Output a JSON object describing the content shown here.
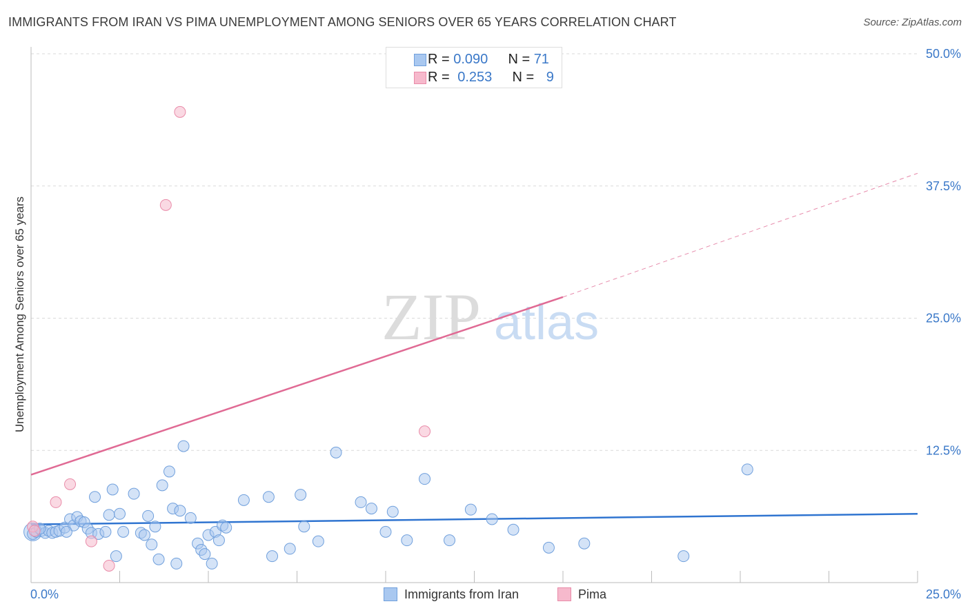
{
  "title": "IMMIGRANTS FROM IRAN VS PIMA UNEMPLOYMENT AMONG SENIORS OVER 65 YEARS CORRELATION CHART",
  "source": "Source: ZipAtlas.com",
  "watermark": {
    "zip": "ZIP",
    "atlas": "atlas"
  },
  "legend_top": {
    "rows": [
      {
        "r_label": "R = ",
        "r_value": "0.090",
        "n_label": "N = ",
        "n_value": "71",
        "color": "#a9c8f0"
      },
      {
        "r_label": "R = ",
        "r_value": "0.253",
        "n_label": "N = ",
        "n_value": "9",
        "color": "#f6b9cc"
      }
    ]
  },
  "legend_bottom": [
    {
      "label": "Immigrants from Iran",
      "color": "#a9c8f0"
    },
    {
      "label": "Pima",
      "color": "#f6b9cc"
    }
  ],
  "colors": {
    "blue_fill": "#a9c8f0",
    "blue_stroke": "#6f9fdc",
    "blue_line": "#2f74d0",
    "pink_fill": "#f6b9cc",
    "pink_stroke": "#e98aa8",
    "pink_line": "#e06a94",
    "grid": "#d9d9d9",
    "tick_text": "#3a78c8"
  },
  "chart_data": {
    "type": "scatter",
    "title": "IMMIGRANTS FROM IRAN VS PIMA UNEMPLOYMENT AMONG SENIORS OVER 65 YEARS CORRELATION CHART",
    "xlabel": "",
    "ylabel": "Unemployment Among Seniors over 65 years",
    "xlim": [
      0,
      25
    ],
    "ylim": [
      0,
      50
    ],
    "x_tick_labels": [
      "0.0%",
      "25.0%"
    ],
    "y_ticks": [
      12.5,
      25.0,
      37.5,
      50.0
    ],
    "y_tick_labels": [
      "12.5%",
      "25.0%",
      "37.5%",
      "50.0%"
    ],
    "grid": true,
    "series": [
      {
        "name": "Immigrants from Iran",
        "r": 0.09,
        "n": 71,
        "points": [
          [
            0.05,
            4.6
          ],
          [
            0.15,
            4.8
          ],
          [
            0.3,
            4.9
          ],
          [
            0.4,
            4.7
          ],
          [
            0.5,
            4.9
          ],
          [
            0.6,
            4.7
          ],
          [
            0.7,
            4.8
          ],
          [
            0.8,
            4.9
          ],
          [
            0.95,
            5.2
          ],
          [
            1.1,
            6.0
          ],
          [
            1.2,
            5.4
          ],
          [
            1.3,
            6.2
          ],
          [
            1.4,
            5.8
          ],
          [
            1.5,
            5.7
          ],
          [
            1.6,
            5.1
          ],
          [
            1.7,
            4.7
          ],
          [
            1.8,
            8.1
          ],
          [
            1.9,
            4.6
          ],
          [
            2.1,
            4.8
          ],
          [
            2.2,
            6.4
          ],
          [
            2.3,
            8.8
          ],
          [
            2.4,
            2.5
          ],
          [
            2.5,
            6.5
          ],
          [
            2.6,
            4.8
          ],
          [
            2.9,
            8.4
          ],
          [
            3.1,
            4.7
          ],
          [
            3.2,
            4.5
          ],
          [
            3.3,
            6.3
          ],
          [
            3.4,
            3.6
          ],
          [
            3.5,
            5.3
          ],
          [
            3.6,
            2.2
          ],
          [
            3.7,
            9.2
          ],
          [
            3.9,
            10.5
          ],
          [
            4.0,
            7.0
          ],
          [
            4.1,
            1.8
          ],
          [
            4.2,
            6.8
          ],
          [
            4.3,
            12.9
          ],
          [
            4.5,
            6.1
          ],
          [
            4.7,
            3.7
          ],
          [
            4.8,
            3.1
          ],
          [
            4.9,
            2.7
          ],
          [
            5.0,
            4.5
          ],
          [
            5.1,
            1.8
          ],
          [
            5.2,
            4.8
          ],
          [
            5.3,
            4.0
          ],
          [
            5.4,
            5.4
          ],
          [
            5.5,
            5.2
          ],
          [
            6.0,
            7.8
          ],
          [
            6.7,
            8.1
          ],
          [
            6.8,
            2.5
          ],
          [
            7.3,
            3.2
          ],
          [
            7.6,
            8.3
          ],
          [
            7.7,
            5.3
          ],
          [
            8.1,
            3.9
          ],
          [
            8.6,
            12.3
          ],
          [
            9.3,
            7.6
          ],
          [
            9.6,
            7.0
          ],
          [
            10.0,
            4.8
          ],
          [
            10.2,
            6.7
          ],
          [
            10.6,
            4.0
          ],
          [
            11.1,
            9.8
          ],
          [
            11.8,
            4.0
          ],
          [
            12.4,
            6.9
          ],
          [
            13.0,
            6.0
          ],
          [
            13.6,
            5.0
          ],
          [
            14.6,
            3.3
          ],
          [
            15.6,
            3.7
          ],
          [
            18.4,
            2.5
          ],
          [
            20.2,
            10.7
          ],
          [
            0.25,
            5.1
          ],
          [
            1.0,
            4.8
          ]
        ],
        "trend": {
          "x": [
            0,
            25
          ],
          "y": [
            5.5,
            6.5
          ],
          "style": "solid"
        }
      },
      {
        "name": "Pima",
        "r": 0.253,
        "n": 9,
        "points": [
          [
            0.05,
            5.3
          ],
          [
            0.1,
            4.9
          ],
          [
            0.7,
            7.6
          ],
          [
            1.1,
            9.3
          ],
          [
            1.7,
            3.9
          ],
          [
            2.2,
            1.6
          ],
          [
            3.8,
            35.7
          ],
          [
            4.2,
            44.5
          ],
          [
            11.1,
            14.3
          ]
        ],
        "trend_solid": {
          "x": [
            0,
            15
          ],
          "y": [
            10.2,
            27.0
          ]
        },
        "trend_dashed": {
          "x": [
            15,
            25
          ],
          "y": [
            27.0,
            38.7
          ]
        }
      }
    ]
  }
}
